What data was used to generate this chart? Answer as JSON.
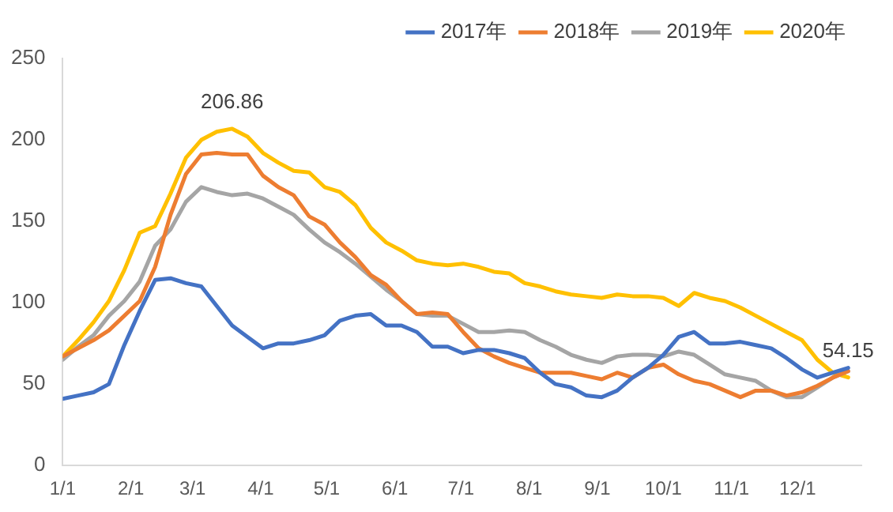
{
  "chart_data": {
    "type": "line",
    "x": [
      "--01-01",
      "--01-08",
      "--01-15",
      "--01-22",
      "--01-29",
      "--02-05",
      "--02-12",
      "--02-19",
      "--02-26",
      "--03-05",
      "--03-12",
      "--03-19",
      "--03-26",
      "--04-02",
      "--04-09",
      "--04-16",
      "--04-23",
      "--04-30",
      "--05-07",
      "--05-14",
      "--05-21",
      "--05-28",
      "--06-04",
      "--06-11",
      "--06-18",
      "--06-25",
      "--07-02",
      "--07-09",
      "--07-16",
      "--07-23",
      "--07-30",
      "--08-06",
      "--08-13",
      "--08-20",
      "--08-27",
      "--09-03",
      "--09-10",
      "--09-17",
      "--09-24",
      "--10-01",
      "--10-08",
      "--10-15",
      "--10-22",
      "--10-29",
      "--11-05",
      "--11-12",
      "--11-19",
      "--11-26",
      "--12-03",
      "--12-10",
      "--12-17",
      "--12-24"
    ],
    "series": [
      {
        "name": "2017年",
        "color": "#4472c4",
        "values": [
          41,
          43,
          45,
          50,
          74,
          95,
          114,
          115,
          112,
          110,
          98,
          86,
          79,
          72,
          75,
          75,
          77,
          80,
          89,
          92,
          93,
          86,
          86,
          82,
          73,
          73,
          69,
          71,
          71,
          69,
          66,
          57,
          50,
          48,
          43,
          42,
          46,
          54,
          60,
          68,
          79,
          82,
          75,
          75,
          76,
          74,
          72,
          66,
          59,
          54,
          57,
          60
        ]
      },
      {
        "name": "2018年",
        "color": "#ed7d31",
        "values": [
          67,
          72,
          77,
          83,
          92,
          101,
          122,
          154,
          179,
          191,
          192,
          191,
          191,
          178,
          171,
          166,
          153,
          148,
          137,
          128,
          117,
          111,
          101,
          93,
          94,
          93,
          82,
          72,
          67,
          63,
          60,
          57,
          57,
          57,
          55,
          53,
          57,
          54,
          60,
          62,
          56,
          52,
          50,
          46,
          42,
          46,
          46,
          43,
          45,
          49,
          54,
          58
        ]
      },
      {
        "name": "2019年",
        "color": "#a5a5a5",
        "values": [
          65,
          73,
          80,
          92,
          101,
          113,
          135,
          145,
          162,
          171,
          168,
          166,
          167,
          164,
          159,
          154,
          145,
          137,
          131,
          124,
          116,
          108,
          101,
          93,
          92,
          92,
          87,
          82,
          82,
          83,
          82,
          77,
          73,
          68,
          65,
          63,
          67,
          68,
          68,
          67,
          70,
          68,
          62,
          56,
          54,
          52,
          46,
          42,
          42,
          48,
          54,
          58
        ]
      },
      {
        "name": "2020年",
        "color": "#ffc000",
        "values": [
          67,
          77,
          88,
          101,
          120,
          143,
          147,
          167,
          189,
          200,
          205,
          206.86,
          202,
          192,
          186,
          181,
          180,
          171,
          168,
          160,
          146,
          137,
          132,
          126,
          124,
          123,
          124,
          122,
          119,
          118,
          112,
          110,
          107,
          105,
          104,
          103,
          105,
          104,
          104,
          103,
          98,
          106,
          103,
          101,
          97,
          92,
          87,
          82,
          77,
          65,
          57,
          54.15
        ]
      }
    ],
    "xlim": [
      "--01-01",
      "--12-30"
    ],
    "xticks": [
      {
        "value": "--01-01",
        "label": "1/1"
      },
      {
        "value": "--02-01",
        "label": "2/1"
      },
      {
        "value": "--03-01",
        "label": "3/1"
      },
      {
        "value": "--04-01",
        "label": "4/1"
      },
      {
        "value": "--05-01",
        "label": "5/1"
      },
      {
        "value": "--06-01",
        "label": "6/1"
      },
      {
        "value": "--07-01",
        "label": "7/1"
      },
      {
        "value": "--08-01",
        "label": "8/1"
      },
      {
        "value": "--09-01",
        "label": "9/1"
      },
      {
        "value": "--10-01",
        "label": "10/1"
      },
      {
        "value": "--11-01",
        "label": "11/1"
      },
      {
        "value": "--12-01",
        "label": "12/1"
      }
    ],
    "ylim": [
      0,
      250
    ],
    "yticks": [
      0,
      50,
      100,
      150,
      200,
      250
    ],
    "grid": false,
    "legend": "top",
    "marker": "none",
    "line_style": "solid",
    "annotations": [
      {
        "text": "206.86",
        "x": "--03-19",
        "y": 206.86
      },
      {
        "text": "54.15",
        "x": "--12-24",
        "y": 54.15
      }
    ]
  }
}
